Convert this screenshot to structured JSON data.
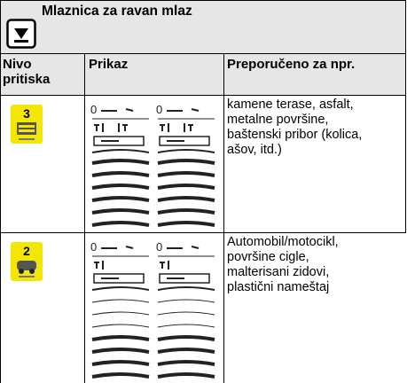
{
  "header": {
    "title": "Mlaznica za ravan mlaz"
  },
  "table": {
    "columns": [
      "Nivo",
      "pritiska",
      "Prikaz",
      "Preporučeno za npr."
    ],
    "rows": [
      {
        "level": "3",
        "text": [
          "kamene terase, asfalt,",
          "metalne površine,",
          "baštenski pribor (kolica,",
          "ašov, itd.)"
        ]
      },
      {
        "level": "2",
        "text": [
          "Automobil/motocikl,",
          "površine cigle,",
          "malterisani zidovi,",
          "plastični nameštaj"
        ]
      }
    ]
  }
}
